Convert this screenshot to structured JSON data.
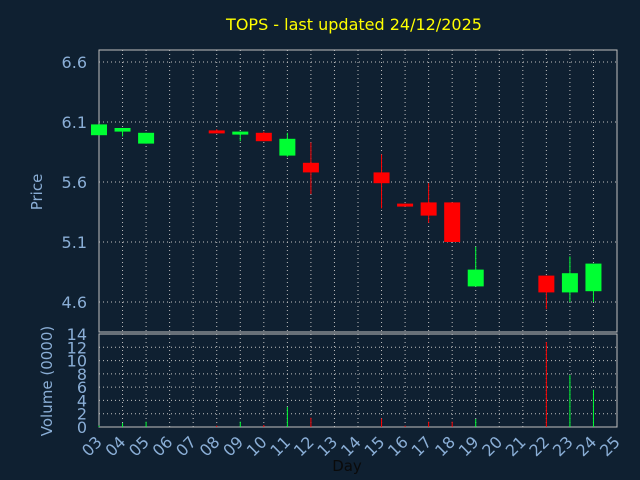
{
  "chart_data": {
    "type": "candlestick",
    "title": "TOPS - last updated 24/12/2025",
    "xlabel": "Day",
    "ylabel": "Price",
    "volume_label": "Volume (0000)",
    "x_ticks": [
      "03",
      "04",
      "05",
      "06",
      "07",
      "08",
      "09",
      "10",
      "11",
      "12",
      "13",
      "14",
      "15",
      "16",
      "17",
      "18",
      "19",
      "20",
      "21",
      "22",
      "23",
      "24",
      "25"
    ],
    "ylim": [
      4.35,
      6.7
    ],
    "y_ticks": [
      "4.6",
      "5.1",
      "5.6",
      "6.1",
      "6.6"
    ],
    "volume_ylim": [
      0,
      14
    ],
    "volume_ticks": [
      "0",
      "2",
      "4",
      "6",
      "8",
      "10",
      "12",
      "14"
    ],
    "grid": true,
    "colors": {
      "background": "#0f2031",
      "up": "#00ff33",
      "down": "#ff0000",
      "grid": "#c0c0c0",
      "axis_text": "#8aaed6",
      "title": "#ffff00"
    },
    "candles": [
      {
        "day": "03",
        "open": 5.99,
        "close": 6.08,
        "high": 6.08,
        "low": 5.99,
        "volume": 0.2
      },
      {
        "day": "04",
        "open": 6.02,
        "close": 6.05,
        "high": 6.05,
        "low": 5.98,
        "volume": 0.6
      },
      {
        "day": "05",
        "open": 5.92,
        "close": 6.01,
        "high": 6.01,
        "low": 5.92,
        "volume": 0.8
      },
      {
        "day": "08",
        "open": 6.03,
        "close": 6.01,
        "high": 6.04,
        "low": 6.01,
        "volume": 0.2
      },
      {
        "day": "09",
        "open": 6.01,
        "close": 6.02,
        "high": 6.02,
        "low": 5.94,
        "volume": 0.8
      },
      {
        "day": "10",
        "open": 6.01,
        "close": 5.94,
        "high": 6.02,
        "low": 5.94,
        "volume": 0.3
      },
      {
        "day": "11",
        "open": 5.82,
        "close": 5.96,
        "high": 6.01,
        "low": 5.81,
        "volume": 3.0
      },
      {
        "day": "12",
        "open": 5.76,
        "close": 5.68,
        "high": 5.93,
        "low": 5.5,
        "volume": 1.4
      },
      {
        "day": "15",
        "open": 5.68,
        "close": 5.59,
        "high": 5.83,
        "low": 5.38,
        "volume": 1.3
      },
      {
        "day": "16",
        "open": 5.42,
        "close": 5.4,
        "high": 5.42,
        "low": 5.4,
        "volume": 0.2
      },
      {
        "day": "17",
        "open": 5.43,
        "close": 5.32,
        "high": 5.59,
        "low": 5.26,
        "volume": 0.8
      },
      {
        "day": "18",
        "open": 5.43,
        "close": 5.1,
        "high": 5.43,
        "low": 5.1,
        "volume": 0.8
      },
      {
        "day": "19",
        "open": 4.73,
        "close": 4.87,
        "high": 5.06,
        "low": 4.73,
        "volume": 1.2
      },
      {
        "day": "22",
        "open": 4.82,
        "close": 4.68,
        "high": 4.82,
        "low": 4.54,
        "volume": 12.8
      },
      {
        "day": "23",
        "open": 4.68,
        "close": 4.84,
        "high": 4.98,
        "low": 4.6,
        "volume": 7.8
      },
      {
        "day": "24",
        "open": 4.69,
        "close": 4.92,
        "high": 4.92,
        "low": 4.6,
        "volume": 5.6
      }
    ]
  }
}
